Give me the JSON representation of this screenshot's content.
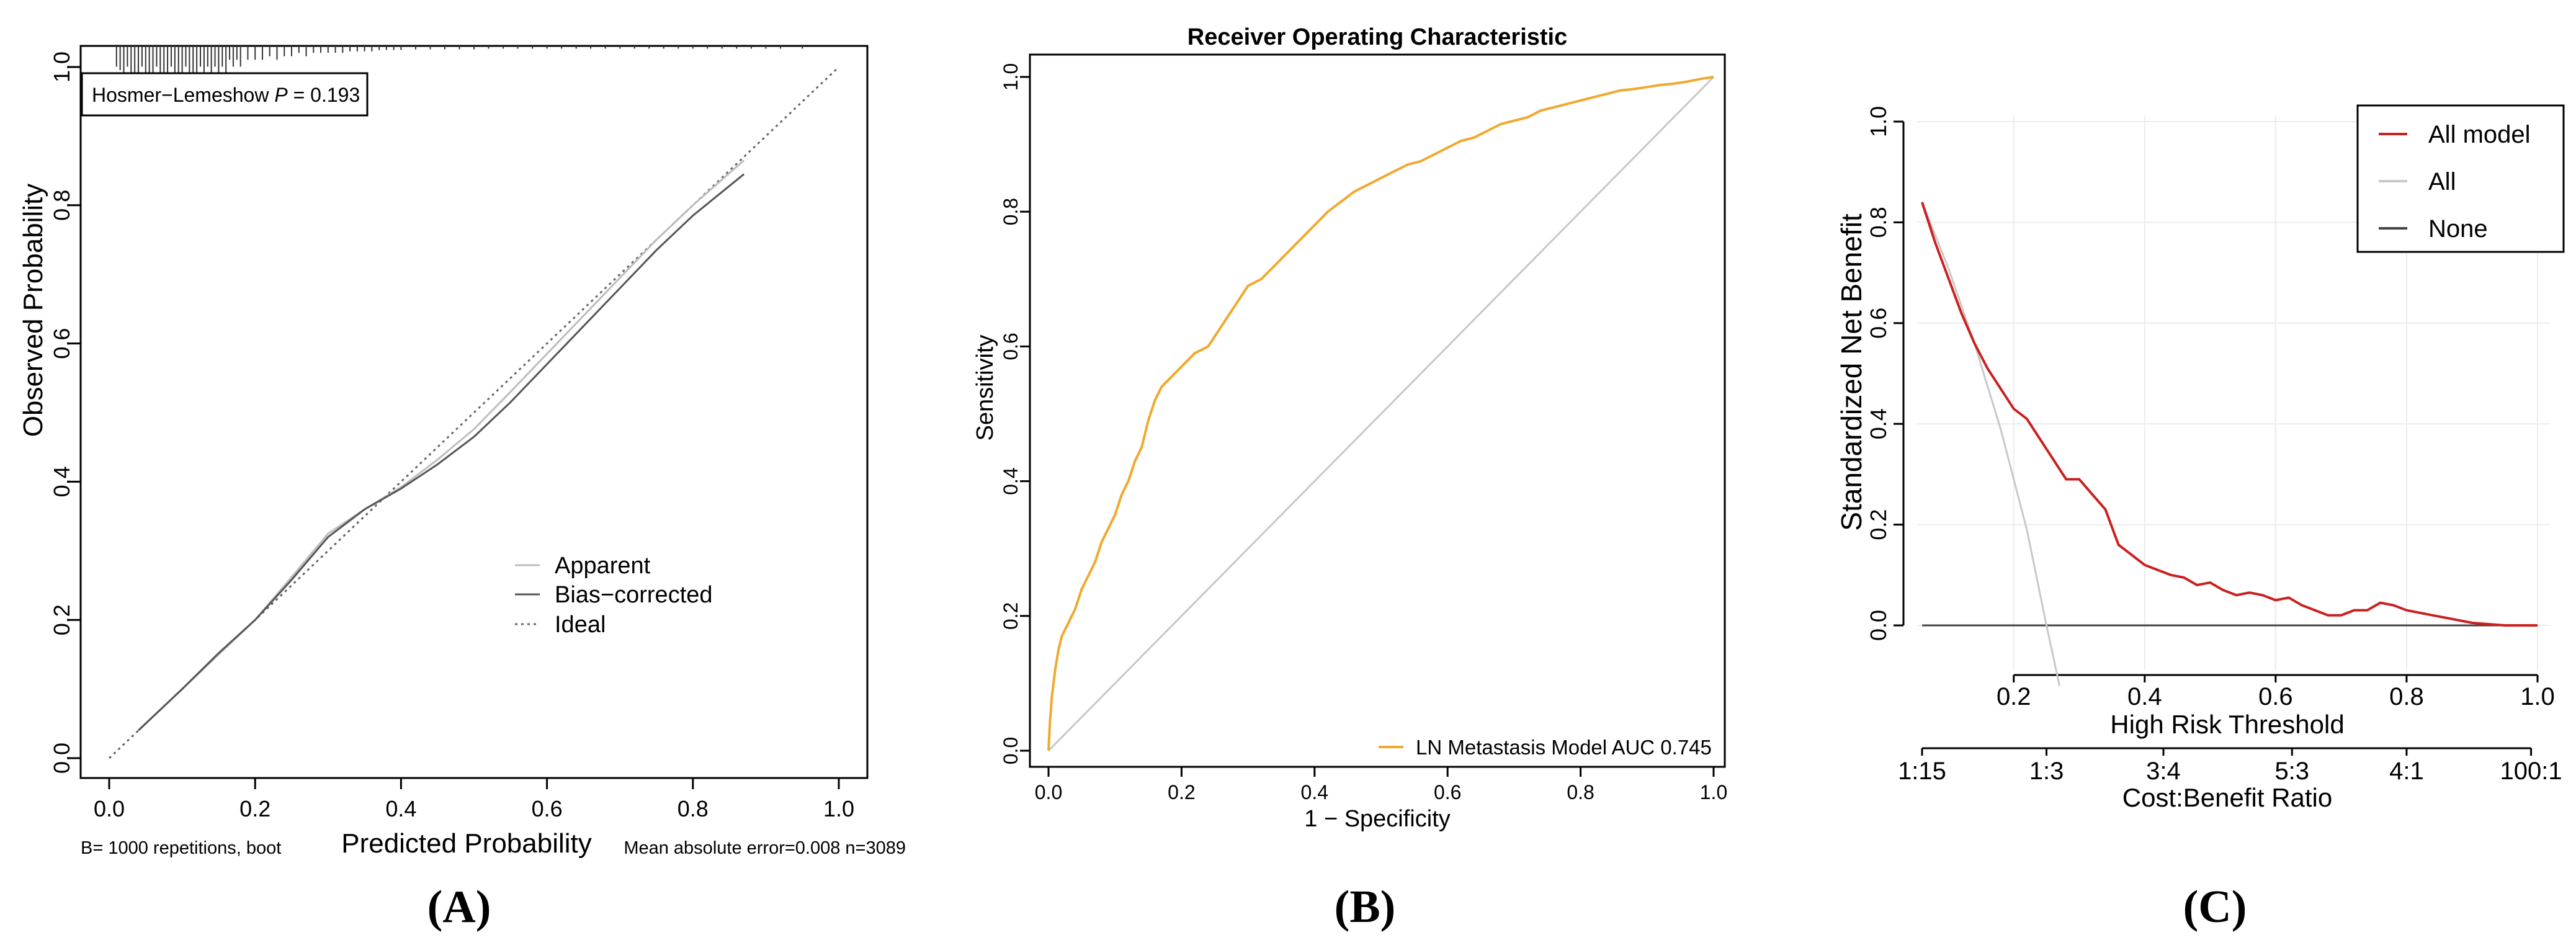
{
  "panels": {
    "A": {
      "label": "(A)"
    },
    "B": {
      "label": "(B)"
    },
    "C": {
      "label": "(C)"
    }
  },
  "chart_data": [
    {
      "id": "A",
      "type": "line",
      "title": "",
      "xlabel": "Predicted Probability",
      "ylabel": "Observed Probability",
      "xlim": [
        0,
        1
      ],
      "ylim": [
        0,
        1
      ],
      "x_ticks": [
        "0.0",
        "0.2",
        "0.4",
        "0.6",
        "0.8",
        "1.0"
      ],
      "y_ticks": [
        "0.0",
        "0.2",
        "0.4",
        "0.6",
        "0.8",
        "1.0"
      ],
      "annotation_box_prefix": "Hosmer−Lemeshow ",
      "annotation_box_p": "P",
      "annotation_box_suffix": " = 0.193",
      "footnote_left": "B= 1000 repetitions, boot",
      "footnote_right": "Mean absolute error=0.008 n=3089",
      "legend": [
        "Apparent",
        "Bias−corrected",
        "Ideal"
      ],
      "colors": {
        "apparent": "#bdbdbd",
        "bias_corrected": "#555555",
        "ideal": "#666666"
      },
      "series": [
        {
          "name": "Apparent",
          "x": [
            0.04,
            0.1,
            0.15,
            0.2,
            0.25,
            0.3,
            0.35,
            0.4,
            0.45,
            0.5,
            0.55,
            0.6,
            0.65,
            0.7,
            0.75,
            0.8,
            0.87
          ],
          "y": [
            0.04,
            0.1,
            0.15,
            0.2,
            0.262,
            0.325,
            0.36,
            0.392,
            0.432,
            0.476,
            0.53,
            0.585,
            0.64,
            0.695,
            0.75,
            0.8,
            0.865
          ]
        },
        {
          "name": "Bias−corrected",
          "x": [
            0.04,
            0.1,
            0.15,
            0.2,
            0.25,
            0.3,
            0.35,
            0.4,
            0.45,
            0.5,
            0.55,
            0.6,
            0.65,
            0.7,
            0.75,
            0.8,
            0.87
          ],
          "y": [
            0.04,
            0.1,
            0.152,
            0.2,
            0.258,
            0.32,
            0.36,
            0.39,
            0.425,
            0.465,
            0.515,
            0.57,
            0.625,
            0.68,
            0.735,
            0.785,
            0.845
          ]
        },
        {
          "name": "Ideal",
          "x": [
            0,
            1
          ],
          "y": [
            0,
            1
          ]
        }
      ],
      "rug_x": [
        0.01,
        0.015,
        0.02,
        0.025,
        0.03,
        0.035,
        0.04,
        0.045,
        0.05,
        0.055,
        0.06,
        0.065,
        0.07,
        0.075,
        0.08,
        0.085,
        0.09,
        0.095,
        0.1,
        0.105,
        0.11,
        0.115,
        0.12,
        0.125,
        0.13,
        0.135,
        0.14,
        0.145,
        0.15,
        0.155,
        0.16,
        0.165,
        0.17,
        0.175,
        0.18,
        0.19,
        0.2,
        0.21,
        0.22,
        0.23,
        0.24,
        0.25,
        0.26,
        0.27,
        0.28,
        0.29,
        0.3,
        0.31,
        0.32,
        0.33,
        0.34,
        0.35,
        0.36,
        0.37,
        0.38,
        0.39,
        0.4,
        0.42,
        0.44,
        0.46,
        0.48,
        0.5,
        0.52,
        0.54,
        0.56,
        0.58,
        0.6,
        0.62,
        0.64,
        0.66,
        0.68,
        0.7,
        0.72,
        0.74,
        0.76,
        0.78,
        0.8,
        0.82,
        0.84,
        0.86,
        0.88,
        0.9,
        0.92,
        0.95
      ],
      "rug_heights": [
        0.03,
        0.035,
        0.05,
        0.03,
        0.06,
        0.04,
        0.07,
        0.03,
        0.06,
        0.04,
        0.08,
        0.03,
        0.05,
        0.04,
        0.07,
        0.03,
        0.06,
        0.04,
        0.05,
        0.03,
        0.06,
        0.04,
        0.05,
        0.03,
        0.04,
        0.03,
        0.05,
        0.03,
        0.04,
        0.03,
        0.04,
        0.02,
        0.03,
        0.02,
        0.03,
        0.02,
        0.02,
        0.02,
        0.015,
        0.02,
        0.015,
        0.015,
        0.01,
        0.015,
        0.01,
        0.01,
        0.01,
        0.01,
        0.01,
        0.008,
        0.008,
        0.008,
        0.008,
        0.006,
        0.006,
        0.006,
        0.006,
        0.005,
        0.005,
        0.005,
        0.005,
        0.005,
        0.004,
        0.004,
        0.004,
        0.004,
        0.004,
        0.004,
        0.004,
        0.004,
        0.004,
        0.004,
        0.004,
        0.004,
        0.004,
        0.004,
        0.004,
        0.004,
        0.004,
        0.004,
        0.004,
        0.004,
        0.004,
        0.004
      ]
    },
    {
      "id": "B",
      "type": "line",
      "title": "Receiver Operating Characteristic",
      "xlabel": "1 − Specificity",
      "ylabel": "Sensitivity",
      "xlim": [
        0,
        1
      ],
      "ylim": [
        0,
        1
      ],
      "x_ticks": [
        "0.0",
        "0.2",
        "0.4",
        "0.6",
        "0.8",
        "1.0"
      ],
      "y_ticks": [
        "0.0",
        "0.2",
        "0.4",
        "0.6",
        "0.8",
        "1.0"
      ],
      "legend": [
        "LN Metastasis Model AUC 0.745"
      ],
      "colors": {
        "roc": "#f0a92e",
        "diagonal": "#c8c8c8"
      },
      "series": [
        {
          "name": "LN Metastasis Model AUC 0.745",
          "x": [
            0,
            0.002,
            0.005,
            0.01,
            0.015,
            0.02,
            0.03,
            0.04,
            0.05,
            0.06,
            0.07,
            0.08,
            0.09,
            0.1,
            0.11,
            0.12,
            0.13,
            0.14,
            0.15,
            0.16,
            0.17,
            0.18,
            0.19,
            0.2,
            0.22,
            0.24,
            0.26,
            0.28,
            0.3,
            0.32,
            0.34,
            0.36,
            0.38,
            0.4,
            0.42,
            0.44,
            0.46,
            0.48,
            0.5,
            0.52,
            0.54,
            0.56,
            0.58,
            0.6,
            0.62,
            0.64,
            0.66,
            0.68,
            0.7,
            0.72,
            0.74,
            0.76,
            0.78,
            0.8,
            0.82,
            0.84,
            0.86,
            0.88,
            0.9,
            0.92,
            0.94,
            0.96,
            0.98,
            1.0
          ],
          "y": [
            0,
            0.04,
            0.08,
            0.12,
            0.15,
            0.17,
            0.19,
            0.21,
            0.24,
            0.26,
            0.28,
            0.31,
            0.33,
            0.35,
            0.38,
            0.4,
            0.43,
            0.45,
            0.49,
            0.52,
            0.54,
            0.55,
            0.56,
            0.57,
            0.59,
            0.6,
            0.63,
            0.66,
            0.69,
            0.7,
            0.72,
            0.74,
            0.76,
            0.78,
            0.8,
            0.815,
            0.83,
            0.84,
            0.85,
            0.86,
            0.87,
            0.875,
            0.885,
            0.895,
            0.905,
            0.91,
            0.92,
            0.93,
            0.935,
            0.94,
            0.95,
            0.955,
            0.96,
            0.965,
            0.97,
            0.975,
            0.98,
            0.982,
            0.985,
            0.988,
            0.99,
            0.993,
            0.997,
            1.0
          ]
        },
        {
          "name": "",
          "x": [
            0,
            1
          ],
          "y": [
            0,
            1
          ]
        }
      ]
    },
    {
      "id": "C",
      "type": "line",
      "title": "",
      "xlabel": "High Risk Threshold",
      "xlabel2": "Cost:Benefit Ratio",
      "ylabel": "Standardized Net Benefit",
      "xlim": [
        0.05,
        1.0
      ],
      "ylim": [
        0,
        1
      ],
      "x_ticks": [
        "0.2",
        "0.4",
        "0.6",
        "0.8",
        "1.0"
      ],
      "x_ticks2": [
        "1:15",
        "1:3",
        "3:4",
        "5:3",
        "4:1",
        "100:1"
      ],
      "y_ticks": [
        "0.0",
        "0.2",
        "0.4",
        "0.6",
        "0.8",
        "1.0"
      ],
      "legend": [
        "All model",
        "All",
        "None"
      ],
      "colors": {
        "model": "#cc1f1f",
        "all": "#c8c8c8",
        "none": "#444444"
      },
      "series": [
        {
          "name": "All model",
          "x": [
            0.06,
            0.08,
            0.1,
            0.12,
            0.14,
            0.16,
            0.18,
            0.2,
            0.22,
            0.24,
            0.26,
            0.28,
            0.3,
            0.32,
            0.34,
            0.36,
            0.38,
            0.4,
            0.42,
            0.44,
            0.46,
            0.48,
            0.5,
            0.52,
            0.54,
            0.56,
            0.58,
            0.6,
            0.62,
            0.64,
            0.66,
            0.68,
            0.7,
            0.72,
            0.74,
            0.76,
            0.78,
            0.8,
            0.82,
            0.84,
            0.86,
            0.88,
            0.9,
            0.92,
            0.95,
            1.0
          ],
          "y": [
            0.84,
            0.76,
            0.69,
            0.62,
            0.56,
            0.51,
            0.47,
            0.43,
            0.41,
            0.37,
            0.33,
            0.29,
            0.29,
            0.26,
            0.23,
            0.16,
            0.14,
            0.12,
            0.11,
            0.1,
            0.095,
            0.08,
            0.085,
            0.07,
            0.06,
            0.065,
            0.06,
            0.05,
            0.055,
            0.04,
            0.03,
            0.02,
            0.02,
            0.03,
            0.03,
            0.045,
            0.04,
            0.03,
            0.025,
            0.02,
            0.015,
            0.01,
            0.005,
            0.003,
            0.0,
            0.0
          ]
        },
        {
          "name": "All",
          "x": [
            0.06,
            0.1,
            0.14,
            0.18,
            0.22,
            0.25,
            0.27
          ],
          "y": [
            0.84,
            0.71,
            0.56,
            0.39,
            0.19,
            0.0,
            -0.12
          ]
        },
        {
          "name": "None",
          "x": [
            0.06,
            1.0
          ],
          "y": [
            0,
            0
          ]
        }
      ]
    }
  ]
}
